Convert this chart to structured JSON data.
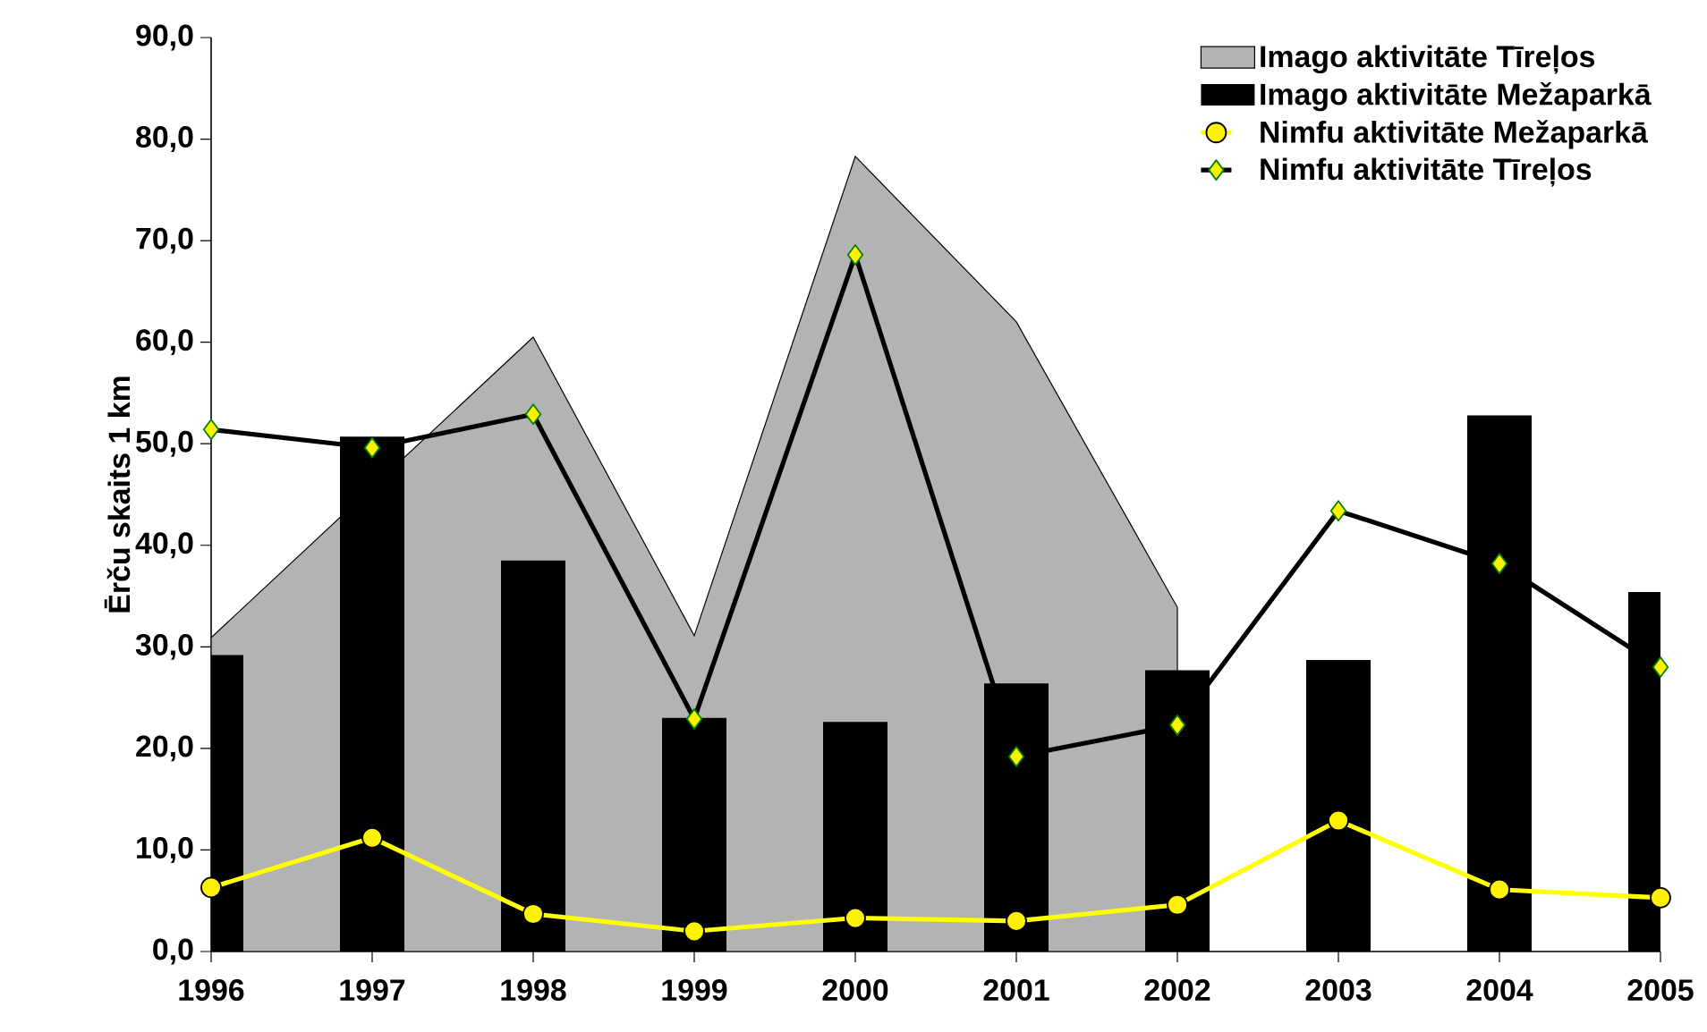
{
  "chart_data": {
    "type": "bar",
    "ylabel": "Ērču skaits 1 km",
    "categories": [
      "1996",
      "1997",
      "1998",
      "1999",
      "2000",
      "2001",
      "2002",
      "2003",
      "2004",
      "2005"
    ],
    "series": [
      {
        "name": "Imago aktivitāte Tīreļos",
        "type": "area",
        "color": "#b3b3b3",
        "values": [
          30.9,
          null,
          60.5,
          31.1,
          78.3,
          62.0,
          33.9,
          null,
          null,
          null
        ]
      },
      {
        "name": "Imago aktivitāte Mežaparkā",
        "color": "#000000",
        "values": [
          29.2,
          50.7,
          38.5,
          23.0,
          22.6,
          26.4,
          27.7,
          28.7,
          52.8,
          35.4
        ]
      },
      {
        "name": "Nimfu aktivitāte Mežaparkā",
        "type": "line",
        "color": "#ffff00",
        "marker": "circle",
        "values": [
          6.3,
          11.2,
          3.7,
          2.0,
          3.3,
          3.0,
          4.6,
          12.9,
          6.1,
          5.3
        ]
      },
      {
        "name": "Nimfu aktivitāte Tīreļos",
        "type": "line",
        "color": "#000000",
        "marker": "diamond",
        "values": [
          51.4,
          49.6,
          52.9,
          22.9,
          68.6,
          19.2,
          22.3,
          43.4,
          38.2,
          28.0
        ]
      }
    ],
    "ylim": [
      0,
      90
    ],
    "yticks": [
      {
        "value": 0,
        "label": "0,0"
      },
      {
        "value": 10,
        "label": "10,0"
      },
      {
        "value": 20,
        "label": "20,0"
      },
      {
        "value": 30,
        "label": "30,0"
      },
      {
        "value": 40,
        "label": "40,0"
      },
      {
        "value": 50,
        "label": "50,0"
      },
      {
        "value": 60,
        "label": "60,0"
      },
      {
        "value": 70,
        "label": "70,0"
      },
      {
        "value": 80,
        "label": "80,0"
      },
      {
        "value": 90,
        "label": "90,0"
      }
    ],
    "legend": "top right"
  }
}
